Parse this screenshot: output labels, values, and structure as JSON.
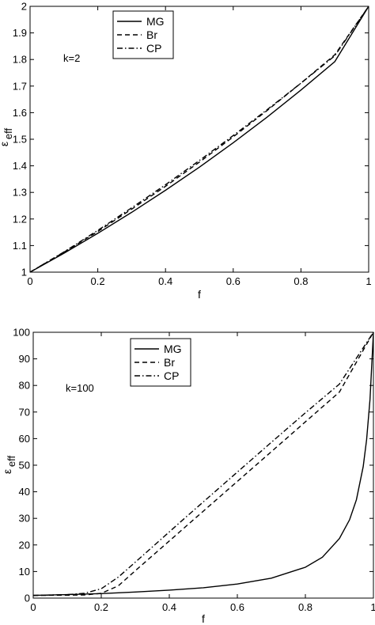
{
  "chart_data": [
    {
      "type": "line",
      "xlabel": "f",
      "ylabel": "ε",
      "ylabel_sub": "eff",
      "xlim": [
        0,
        1
      ],
      "ylim": [
        1,
        2
      ],
      "xticks": [
        "0",
        "0.2",
        "0.4",
        "0.6",
        "0.8",
        "1"
      ],
      "yticks": [
        "1",
        "1.1",
        "1.2",
        "1.3",
        "1.4",
        "1.5",
        "1.6",
        "1.7",
        "1.8",
        "1.9",
        "2"
      ],
      "annotation": "k=2",
      "legend_position": "top-left",
      "grid": false,
      "series": [
        {
          "name": "MG",
          "style": "solid",
          "x": [
            0,
            0.1,
            0.2,
            0.3,
            0.4,
            0.5,
            0.6,
            0.7,
            0.8,
            0.9,
            1
          ],
          "y": [
            1,
            1.071,
            1.146,
            1.225,
            1.308,
            1.395,
            1.487,
            1.583,
            1.685,
            1.792,
            2
          ]
        },
        {
          "name": "Br",
          "style": "dashed",
          "x": [
            0,
            0.1,
            0.2,
            0.3,
            0.4,
            0.5,
            0.6,
            0.7,
            0.8,
            0.9,
            1
          ],
          "y": [
            1,
            1.075,
            1.153,
            1.237,
            1.323,
            1.414,
            1.509,
            1.608,
            1.711,
            1.818,
            2
          ]
        },
        {
          "name": "CP",
          "style": "dashdot",
          "x": [
            0,
            0.1,
            0.2,
            0.3,
            0.4,
            0.5,
            0.6,
            0.7,
            0.8,
            0.9,
            1
          ],
          "y": [
            1,
            1.076,
            1.157,
            1.242,
            1.329,
            1.42,
            1.514,
            1.611,
            1.711,
            1.814,
            2
          ]
        }
      ]
    },
    {
      "type": "line",
      "xlabel": "f",
      "ylabel": "ε",
      "ylabel_sub": "eff",
      "xlim": [
        0,
        1
      ],
      "ylim": [
        0,
        100
      ],
      "xticks": [
        "0",
        "0.2",
        "0.4",
        "0.6",
        "0.8",
        "1"
      ],
      "yticks": [
        "0",
        "10",
        "20",
        "30",
        "40",
        "50",
        "60",
        "70",
        "80",
        "90",
        "100"
      ],
      "annotation": "k=100",
      "legend_position": "top-left",
      "grid": false,
      "series": [
        {
          "name": "MG",
          "style": "solid",
          "x": [
            0,
            0.1,
            0.2,
            0.3,
            0.4,
            0.5,
            0.6,
            0.7,
            0.8,
            0.85,
            0.9,
            0.93,
            0.95,
            0.97,
            0.98,
            0.99,
            1
          ],
          "y": [
            1,
            1.3,
            1.7,
            2.3,
            3.0,
            3.9,
            5.3,
            7.5,
            11.6,
            15.4,
            22.4,
            29.5,
            37.0,
            49.5,
            59.6,
            74.8,
            100
          ]
        },
        {
          "name": "Br",
          "style": "dashed",
          "x": [
            0,
            0.1,
            0.15,
            0.2,
            0.25,
            0.3,
            0.35,
            0.4,
            0.45,
            0.5,
            0.6,
            0.7,
            0.8,
            0.9,
            1
          ],
          "y": [
            1,
            1.1,
            1.2,
            1.8,
            4.6,
            10.3,
            15.9,
            21.5,
            27.1,
            32.7,
            43.9,
            55.1,
            66.3,
            77.5,
            100
          ]
        },
        {
          "name": "CP",
          "style": "dashdot",
          "x": [
            0,
            0.1,
            0.15,
            0.2,
            0.25,
            0.3,
            0.35,
            0.4,
            0.45,
            0.5,
            0.6,
            0.7,
            0.8,
            0.9,
            1
          ],
          "y": [
            1,
            1.3,
            1.8,
            3.5,
            7.9,
            13.5,
            19.2,
            24.9,
            30.6,
            36.2,
            47.4,
            58.6,
            69.7,
            80.5,
            100
          ]
        }
      ]
    }
  ]
}
